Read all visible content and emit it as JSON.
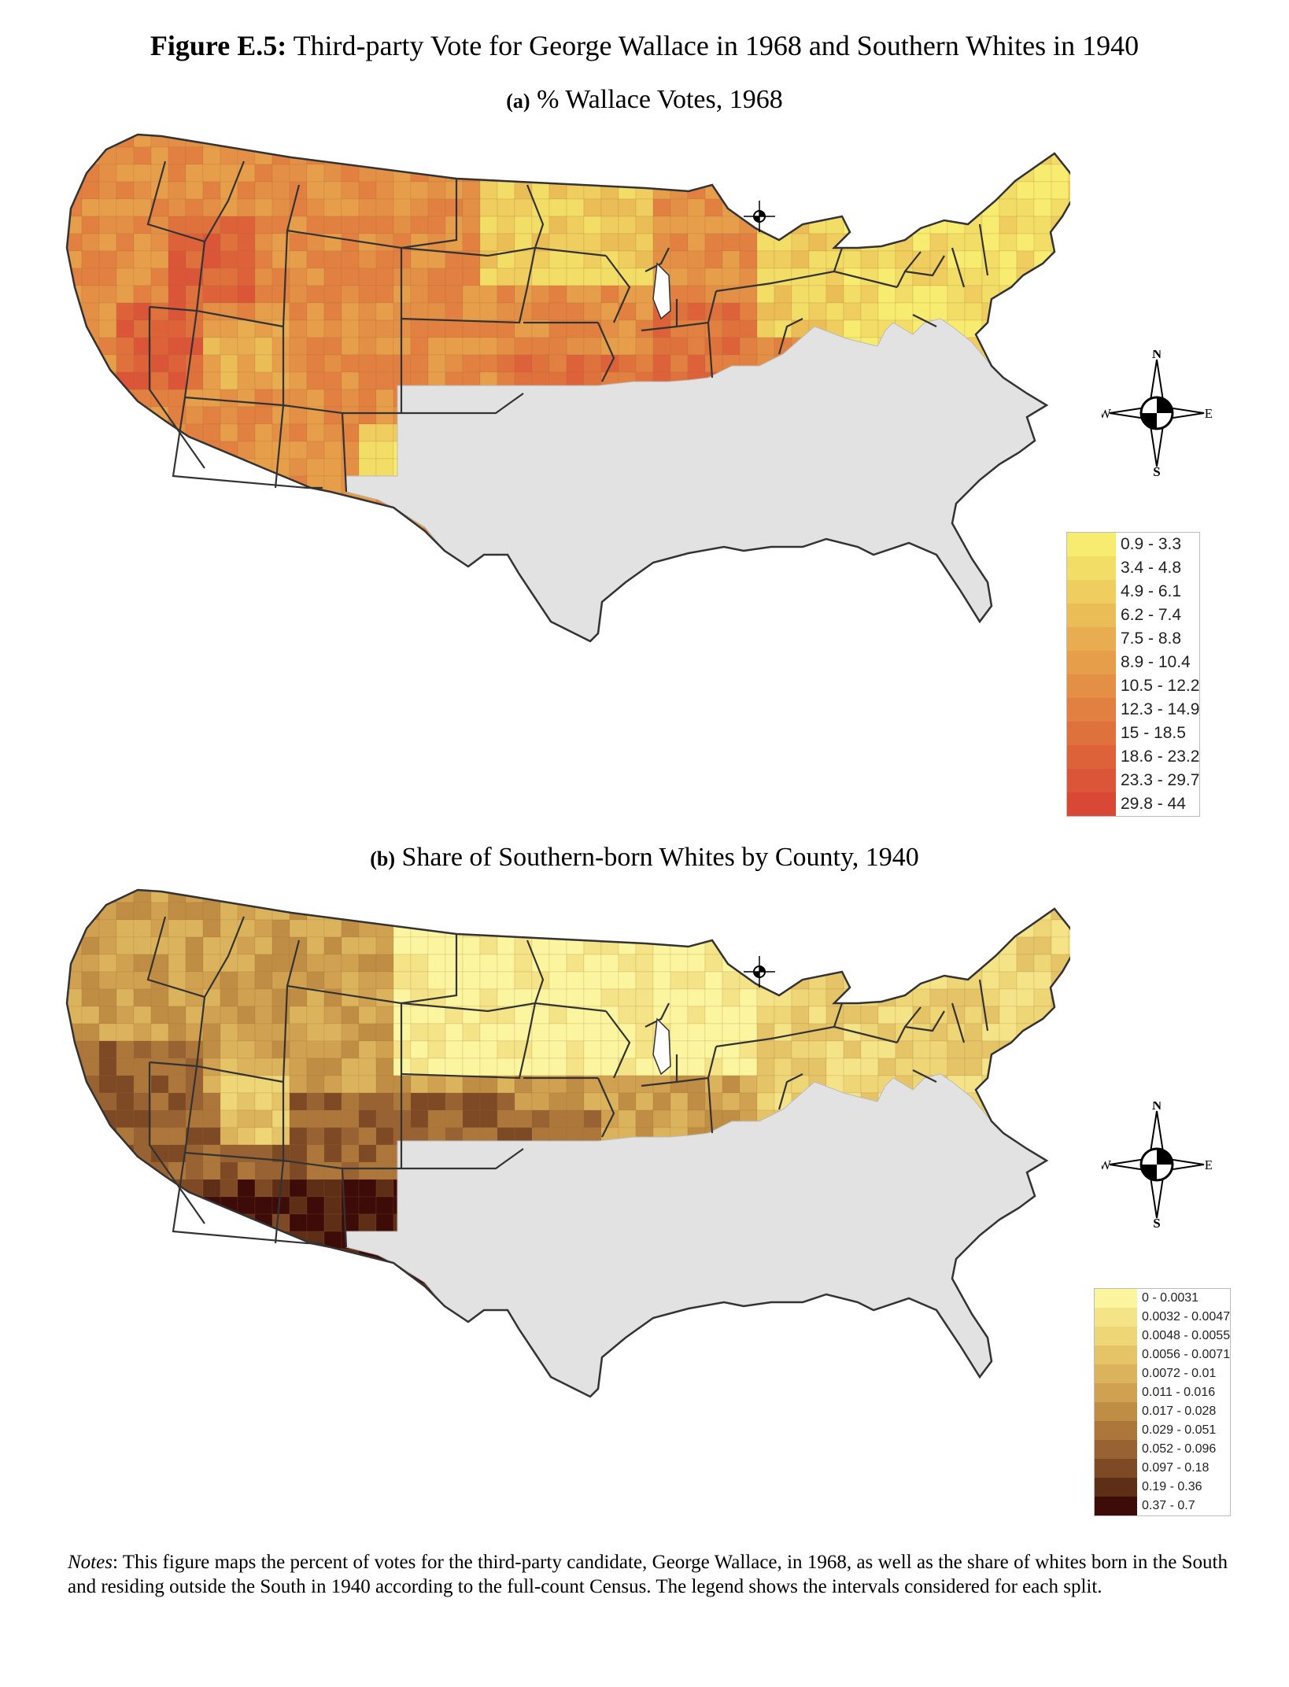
{
  "figure": {
    "label": "Figure E.5:",
    "title": "Third-party Vote for George Wallace in 1968 and Southern Whites in 1940"
  },
  "panels": [
    {
      "tag": "(a)",
      "title": "% Wallace Votes, 1968",
      "legend": [
        {
          "label": "0.9 - 3.3",
          "color": "#f7ec6f"
        },
        {
          "label": "3.4 - 4.8",
          "color": "#f2dd66"
        },
        {
          "label": "4.9 - 6.1",
          "color": "#efcd5e"
        },
        {
          "label": "6.2 - 7.4",
          "color": "#ebbd57"
        },
        {
          "label": "7.5 - 8.8",
          "color": "#e8ad51"
        },
        {
          "label": "8.9 - 10.4",
          "color": "#e69e4a"
        },
        {
          "label": "10.5 - 12.2",
          "color": "#e38f45"
        },
        {
          "label": "12.3 - 14.9",
          "color": "#e18040"
        },
        {
          "label": "15 - 18.5",
          "color": "#df713c"
        },
        {
          "label": "18.6 - 23.2",
          "color": "#dd623a"
        },
        {
          "label": "23.3 - 29.7",
          "color": "#db5538"
        },
        {
          "label": "29.8 - 44",
          "color": "#d94735"
        }
      ],
      "compass": {
        "n": "N",
        "s": "S",
        "e": "E",
        "w": "W"
      }
    },
    {
      "tag": "(b)",
      "title": "Share of Southern-born Whites by County, 1940",
      "legend": [
        {
          "label": "0 - 0.0031",
          "color": "#fbf5a0"
        },
        {
          "label": "0.0032 - 0.0047",
          "color": "#f5e487"
        },
        {
          "label": "0.0048 - 0.0055",
          "color": "#eed576"
        },
        {
          "label": "0.0056 - 0.0071",
          "color": "#e5c468"
        },
        {
          "label": "0.0072 - 0.01",
          "color": "#dbb35c"
        },
        {
          "label": "0.011 - 0.016",
          "color": "#cfa150"
        },
        {
          "label": "0.017 - 0.028",
          "color": "#c08d45"
        },
        {
          "label": "0.029 - 0.051",
          "color": "#ad773b"
        },
        {
          "label": "0.052 - 0.096",
          "color": "#986232"
        },
        {
          "label": "0.097 - 0.18",
          "color": "#7e4a26"
        },
        {
          "label": "0.19 - 0.36",
          "color": "#5f2e17"
        },
        {
          "label": "0.37 - 0.7",
          "color": "#3e0c08"
        }
      ],
      "compass": {
        "n": "N",
        "s": "S",
        "e": "E",
        "w": "W"
      }
    }
  ],
  "colors": {
    "south_gray": "#e2e2e2",
    "border": "#333333"
  },
  "notes": {
    "label": "Notes",
    "text": ": This figure maps the percent of votes for the third-party candidate, George Wallace, in 1968, as well as the share of whites born in the South and residing outside the South in 1940 according to the full-count Census. The legend shows the intervals considered for each split."
  }
}
